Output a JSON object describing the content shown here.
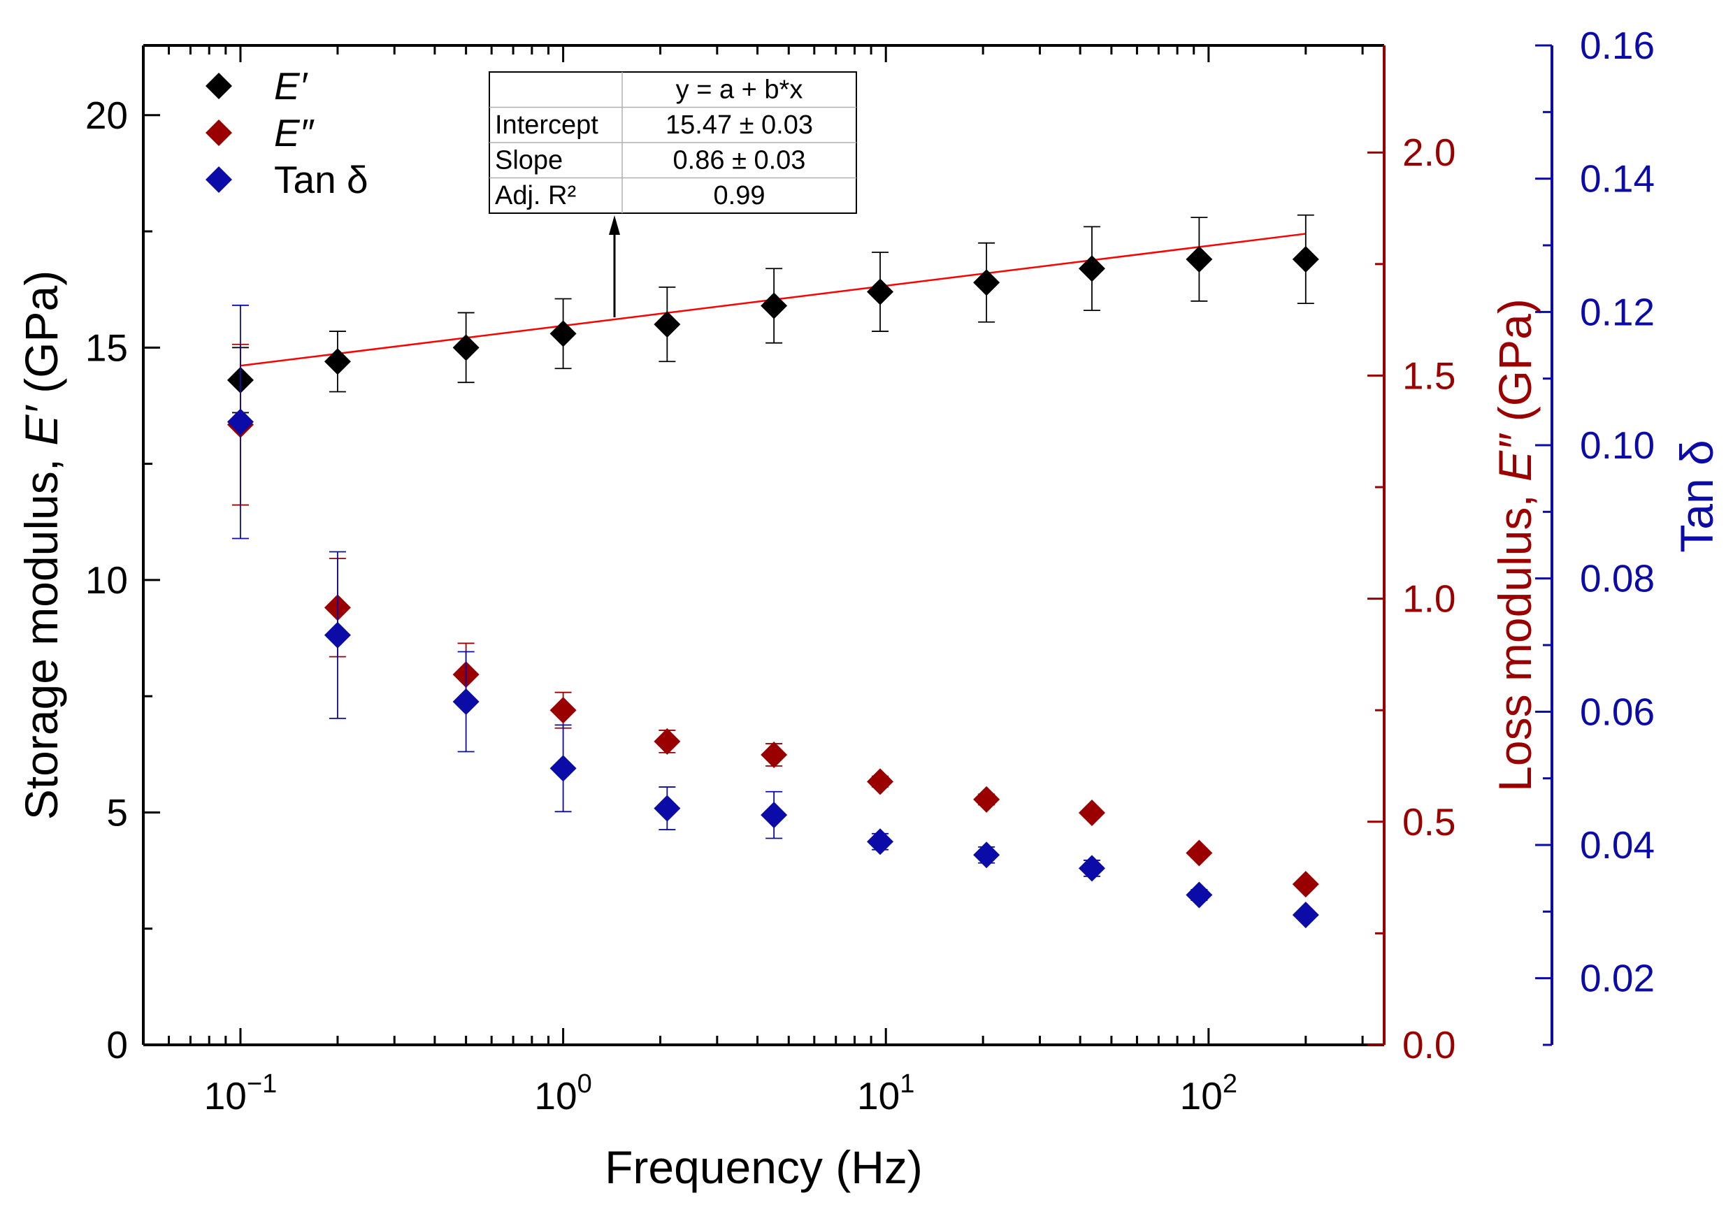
{
  "chart_data": {
    "type": "scatter",
    "xlabel": "Frequency (Hz)",
    "x_scale": "log",
    "xlim": [
      0.05,
      350
    ],
    "x_ticks": [
      {
        "value": 0.1,
        "base": "10",
        "exp": "−1"
      },
      {
        "value": 1,
        "base": "10",
        "exp": "0"
      },
      {
        "value": 10,
        "base": "10",
        "exp": "1"
      },
      {
        "value": 100,
        "base": "10",
        "exp": "2"
      }
    ],
    "axes": {
      "left": {
        "title_plain": "Storage modulus, ",
        "title_italic": "E′",
        "title_suffix": " (GPa)",
        "lim": [
          0,
          21.5
        ],
        "ticks": [
          "0",
          "5",
          "10",
          "15",
          "20"
        ],
        "tick_values": [
          0,
          5,
          10,
          15,
          20
        ],
        "minor_step": 2.5,
        "color": "#000000"
      },
      "right1": {
        "title_plain": "Loss modulus, ",
        "title_italic": "E″",
        "title_suffix": " (GPa)",
        "lim": [
          0,
          2.24
        ],
        "ticks": [
          "0.0",
          "0.5",
          "1.0",
          "1.5",
          "2.0"
        ],
        "tick_values": [
          0,
          0.5,
          1.0,
          1.5,
          2.0
        ],
        "minor_step": 0.25,
        "color": "#9b0000"
      },
      "right2": {
        "title": "Tan δ",
        "lim": [
          0.01,
          0.16
        ],
        "ticks": [
          "0.02",
          "0.04",
          "0.06",
          "0.08",
          "0.10",
          "0.12",
          "0.14",
          "0.16"
        ],
        "tick_values": [
          0.02,
          0.04,
          0.06,
          0.08,
          0.1,
          0.12,
          0.14,
          0.16
        ],
        "minor_step": 0.01,
        "color": "#0b0ba8"
      }
    },
    "x": [
      0.1,
      0.2,
      0.5,
      1.0,
      2.1,
      4.5,
      9.6,
      20.5,
      43.5,
      93.5,
      200
    ],
    "series": [
      {
        "name": "E′",
        "axis": "left",
        "color": "#000000",
        "values": [
          14.3,
          14.7,
          15.0,
          15.3,
          15.5,
          15.9,
          16.2,
          16.4,
          16.7,
          16.9,
          16.9
        ],
        "errors": [
          0.7,
          0.65,
          0.75,
          0.75,
          0.8,
          0.8,
          0.85,
          0.85,
          0.9,
          0.9,
          0.95
        ]
      },
      {
        "name": "E″",
        "axis": "right1",
        "color": "#9b0000",
        "values": [
          1.39,
          0.98,
          0.83,
          0.75,
          0.68,
          0.65,
          0.59,
          0.55,
          0.52,
          0.43,
          0.36
        ],
        "errors": [
          0.18,
          0.11,
          0.07,
          0.04,
          0.025,
          0.025,
          0.012,
          0.012,
          0.01,
          0.01,
          0.01
        ]
      },
      {
        "name": "Tan δ",
        "axis": "right2",
        "color": "#0b0ba8",
        "values": [
          0.1035,
          0.0715,
          0.0615,
          0.0515,
          0.0455,
          0.0445,
          0.0405,
          0.0385,
          0.0365,
          0.0325,
          0.0295
        ],
        "errors": [
          0.0175,
          0.0125,
          0.0075,
          0.0065,
          0.0032,
          0.0035,
          0.0012,
          0.0012,
          0.0012,
          0.0008,
          0.0006
        ]
      }
    ],
    "legend": {
      "position": "top-left",
      "entries": [
        {
          "label": "E′",
          "italic": true,
          "color": "#000000"
        },
        {
          "label": "E″",
          "italic": true,
          "color": "#9b0000"
        },
        {
          "label": "Tan δ",
          "italic": false,
          "color": "#0b0ba8"
        }
      ]
    },
    "fit": {
      "series": "E′",
      "equation": "y = a + b*x",
      "intercept": 15.47,
      "slope": 0.86,
      "x_range": [
        0.1,
        200
      ],
      "color": "#ff0000",
      "table": [
        {
          "label": "Intercept",
          "value": "15.47 ± 0.03"
        },
        {
          "label": "Slope",
          "value": "0.86 ± 0.03"
        },
        {
          "label": "Adj. R²",
          "value": "0.99"
        }
      ]
    }
  }
}
